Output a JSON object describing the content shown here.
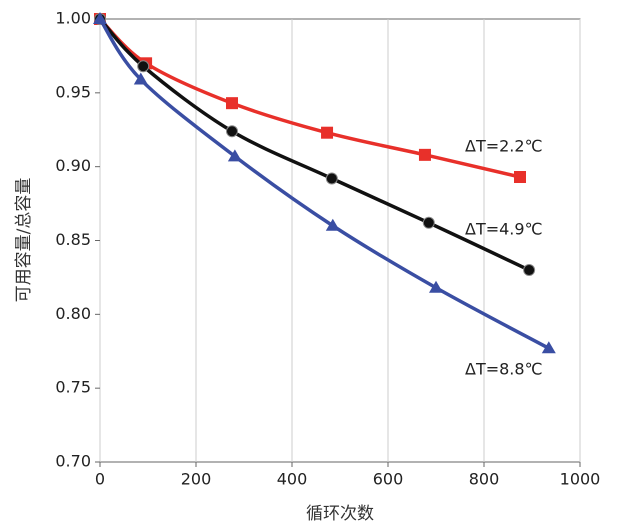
{
  "chart_data": {
    "type": "line",
    "xlabel": "循环次数",
    "ylabel": "可用容量/总容量",
    "xlim": [
      0,
      1000
    ],
    "xticks": [
      0,
      200,
      400,
      600,
      800,
      1000
    ],
    "ylim": [
      0.7,
      1.0
    ],
    "yticks": [
      {
        "value": 0.7,
        "label": "0.70"
      },
      0.75,
      {
        "value": 0.8,
        "label": "0.80"
      },
      0.85,
      {
        "value": 0.9,
        "label": "0.90"
      },
      0.95,
      {
        "value": 1.0,
        "label": "1.00"
      }
    ],
    "grid": "x",
    "series": [
      {
        "name": "ΔT=2.2℃",
        "color": "#e8302a",
        "marker": "square",
        "x": [
          0,
          96,
          275,
          473,
          677,
          875
        ],
        "values": [
          1.0,
          0.97,
          0.943,
          0.923,
          0.908,
          0.893
        ]
      },
      {
        "name": "ΔT=4.9℃",
        "color": "#111111",
        "marker": "circle",
        "x": [
          0,
          90,
          275,
          483,
          685,
          894
        ],
        "values": [
          1.0,
          0.968,
          0.924,
          0.892,
          0.862,
          0.83
        ]
      },
      {
        "name": "ΔT=8.8℃",
        "color": "#3a4ea3",
        "marker": "triangle",
        "x": [
          0,
          85,
          281,
          485,
          700,
          935
        ],
        "values": [
          1.0,
          0.959,
          0.907,
          0.86,
          0.818,
          0.777
        ]
      }
    ]
  }
}
